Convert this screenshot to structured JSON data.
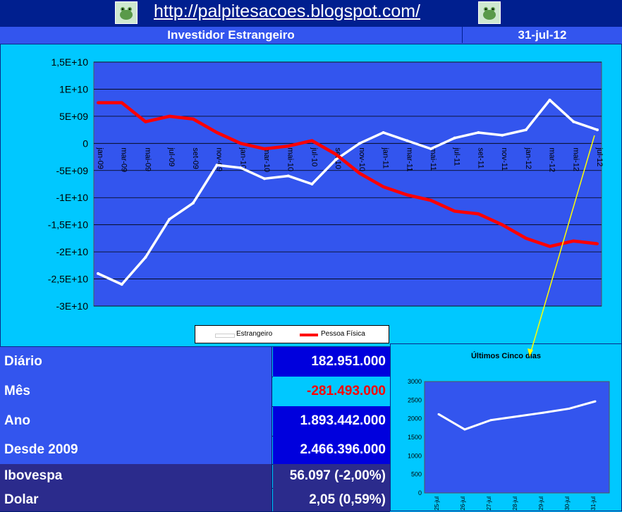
{
  "header": {
    "url": "http://palpitesacoes.blogspot.com/"
  },
  "title": {
    "text": "Investidor Estrangeiro",
    "date": "31-jul-12"
  },
  "colors": {
    "plot_bg": "#3355ee",
    "estrangeiro": "#ffffff",
    "pessoa_fisica": "#ff0000",
    "arrow": "#ffff00"
  },
  "stats": [
    {
      "label": "Diário",
      "value": "182.951.000",
      "value_color": "#ffffff",
      "value_bg": "#0000dd",
      "label_bg": "#3355ee"
    },
    {
      "label": "Mês",
      "value": "-281.493.000",
      "value_color": "#ff0000",
      "value_bg": "#00c8ff",
      "label_bg": "#3355ee"
    },
    {
      "label": "Ano",
      "value": "1.893.442.000",
      "value_color": "#ffffff",
      "value_bg": "#0000dd",
      "label_bg": "#3355ee"
    },
    {
      "label": "Desde 2009",
      "value": "2.466.396.000",
      "value_color": "#ffffff",
      "value_bg": "#0000dd",
      "label_bg": "#3355ee"
    },
    {
      "label": "Ibovespa",
      "value": "56.097 (-2,00%)",
      "value_color": "#ffffff",
      "value_bg": "#2b2b8c",
      "label_bg": "#2b2b8c"
    },
    {
      "label": "Dolar",
      "value": "2,05 (0,59%)",
      "value_color": "#ffffff",
      "value_bg": "#2b2b8c",
      "label_bg": "#2b2b8c"
    }
  ],
  "chart_data": [
    {
      "type": "line",
      "title": "",
      "ylim": [
        -30000000000,
        15000000000
      ],
      "y_ticks": [
        {
          "v": 15000000000,
          "label": "1,5E+10"
        },
        {
          "v": 10000000000,
          "label": "1E+10"
        },
        {
          "v": 5000000000,
          "label": "5E+09"
        },
        {
          "v": 0,
          "label": "0"
        },
        {
          "v": -5000000000,
          "label": "-5E+09"
        },
        {
          "v": -10000000000,
          "label": "-1E+10"
        },
        {
          "v": -15000000000,
          "label": "-1,5E+10"
        },
        {
          "v": -20000000000,
          "label": "-2E+10"
        },
        {
          "v": -25000000000,
          "label": "-2,5E+10"
        },
        {
          "v": -30000000000,
          "label": "-3E+10"
        }
      ],
      "categories": [
        "jan-09",
        "mar-09",
        "mai-09",
        "jul-09",
        "set-09",
        "nov-09",
        "jan-10",
        "mar-10",
        "mai-10",
        "jul-10",
        "set-10",
        "nov-10",
        "jan-11",
        "mar-11",
        "mai-11",
        "jul-11",
        "set-11",
        "nov-11",
        "jan-12",
        "mar-12",
        "mai-12",
        "jul-12"
      ],
      "legend_position": "bottom",
      "series": [
        {
          "name": "Estrangeiro",
          "color": "#ffffff",
          "values": [
            -24000000000,
            -26000000000,
            -21000000000,
            -14000000000,
            -11000000000,
            -4000000000,
            -4500000000,
            -6500000000,
            -6000000000,
            -7500000000,
            -3000000000,
            0,
            2000000000,
            500000000,
            -1000000000,
            1000000000,
            2000000000,
            1500000000,
            2500000000,
            8000000000,
            4000000000,
            2500000000
          ]
        },
        {
          "name": "Pessoa Física",
          "color": "#ff0000",
          "values": [
            7500000000,
            7500000000,
            4000000000,
            5000000000,
            4500000000,
            2000000000,
            0,
            -1000000000,
            -500000000,
            500000000,
            -2000000000,
            -5500000000,
            -8000000000,
            -9500000000,
            -10500000000,
            -12500000000,
            -13000000000,
            -15000000000,
            -17500000000,
            -19000000000,
            -18000000000,
            -18500000000
          ]
        }
      ]
    },
    {
      "type": "line",
      "title": "Últimos Cinco dias",
      "ylim": [
        0,
        3000
      ],
      "y_ticks": [
        0,
        500,
        1000,
        1500,
        2000,
        2500,
        3000
      ],
      "categories": [
        "25-jul",
        "26-jul",
        "27-jul",
        "28-jul",
        "29-jul",
        "30-jul",
        "31-jul"
      ],
      "series": [
        {
          "color": "#ffffff",
          "values": [
            2120,
            1710,
            1960,
            2060,
            2160,
            2270,
            2466
          ]
        }
      ]
    }
  ]
}
